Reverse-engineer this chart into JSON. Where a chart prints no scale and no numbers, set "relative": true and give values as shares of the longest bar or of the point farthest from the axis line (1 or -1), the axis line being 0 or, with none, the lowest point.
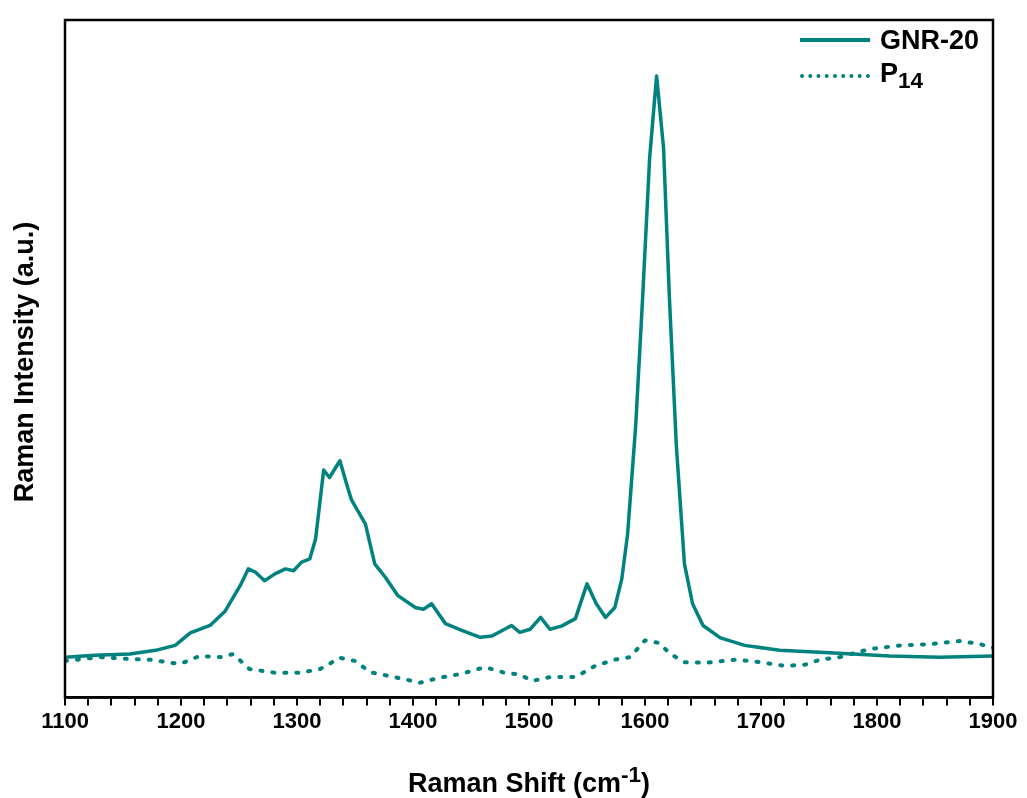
{
  "chart_data": {
    "type": "line",
    "relative": true,
    "xlabel": "Raman Shift (cm$^{-1}$)",
    "ylabel": "Raman Intensity (a.u.)",
    "legend": "top right",
    "marker": "none",
    "grid": false,
    "xlim": [
      1100,
      1900
    ],
    "xticks": [
      1100,
      {
        "value": 1120,
        "label": null
      },
      {
        "value": 1140,
        "label": null
      },
      {
        "value": 1160,
        "label": null
      },
      {
        "value": 1180,
        "label": null
      },
      1200,
      {
        "value": 1220,
        "label": null
      },
      {
        "value": 1240,
        "label": null
      },
      {
        "value": 1260,
        "label": null
      },
      {
        "value": 1280,
        "label": null
      },
      1300,
      {
        "value": 1320,
        "label": null
      },
      {
        "value": 1340,
        "label": null
      },
      {
        "value": 1360,
        "label": null
      },
      {
        "value": 1380,
        "label": null
      },
      1400,
      {
        "value": 1420,
        "label": null
      },
      {
        "value": 1440,
        "label": null
      },
      {
        "value": 1460,
        "label": null
      },
      {
        "value": 1480,
        "label": null
      },
      1500,
      {
        "value": 1520,
        "label": null
      },
      {
        "value": 1540,
        "label": null
      },
      {
        "value": 1560,
        "label": null
      },
      {
        "value": 1580,
        "label": null
      },
      1600,
      {
        "value": 1620,
        "label": null
      },
      {
        "value": 1640,
        "label": null
      },
      {
        "value": 1660,
        "label": null
      },
      {
        "value": 1680,
        "label": null
      },
      1700,
      {
        "value": 1720,
        "label": null
      },
      {
        "value": 1740,
        "label": null
      },
      {
        "value": 1760,
        "label": null
      },
      {
        "value": 1780,
        "label": null
      },
      1800,
      {
        "value": 1820,
        "label": null
      },
      {
        "value": 1840,
        "label": null
      },
      {
        "value": 1860,
        "label": null
      },
      {
        "value": 1880,
        "label": null
      },
      1900
    ],
    "series": [
      {
        "name": "GNR-20",
        "color": "#00827f",
        "line_style": "solid",
        "x": [
          1100,
          1126,
          1156,
          1178,
          1195,
          1208,
          1225,
          1238,
          1251,
          1258,
          1264,
          1272,
          1281,
          1290,
          1297,
          1304,
          1311,
          1316,
          1323,
          1328,
          1337,
          1343,
          1347,
          1359,
          1367,
          1376,
          1387,
          1402,
          1409,
          1416,
          1428,
          1442,
          1458,
          1468,
          1479,
          1485,
          1492,
          1501,
          1510,
          1518,
          1528,
          1540,
          1550,
          1558,
          1566,
          1574,
          1580,
          1585,
          1592,
          1598,
          1604,
          1610,
          1616,
          1621,
          1627,
          1634,
          1641,
          1650,
          1665,
          1686,
          1716,
          1759,
          1811,
          1854,
          1900
        ],
        "values": [
          0.065,
          0.068,
          0.07,
          0.076,
          0.084,
          0.104,
          0.116,
          0.139,
          0.18,
          0.207,
          0.202,
          0.188,
          0.199,
          0.207,
          0.204,
          0.218,
          0.223,
          0.255,
          0.366,
          0.354,
          0.381,
          0.342,
          0.318,
          0.279,
          0.215,
          0.194,
          0.164,
          0.145,
          0.142,
          0.151,
          0.119,
          0.108,
          0.097,
          0.099,
          0.11,
          0.116,
          0.105,
          0.11,
          0.129,
          0.11,
          0.115,
          0.127,
          0.183,
          0.151,
          0.129,
          0.145,
          0.191,
          0.263,
          0.438,
          0.645,
          0.868,
          1.0,
          0.884,
          0.645,
          0.406,
          0.215,
          0.151,
          0.116,
          0.096,
          0.084,
          0.076,
          0.072,
          0.067,
          0.065,
          0.067
        ]
      },
      {
        "name": "P$_{14}$",
        "color": "#00827f",
        "line_style": "dotted",
        "x": [
          1100,
          1130,
          1156,
          1173,
          1199,
          1216,
          1234,
          1245,
          1259,
          1281,
          1303,
          1320,
          1337,
          1350,
          1363,
          1384,
          1406,
          1423,
          1441,
          1462,
          1479,
          1492,
          1503,
          1518,
          1540,
          1557,
          1574,
          1587,
          1600,
          1612,
          1622,
          1634,
          1652,
          1678,
          1699,
          1721,
          1738,
          1751,
          1768,
          1781,
          1794,
          1820,
          1846,
          1872,
          1889,
          1900
        ],
        "values": [
          0.059,
          0.065,
          0.062,
          0.061,
          0.054,
          0.067,
          0.065,
          0.07,
          0.046,
          0.04,
          0.04,
          0.046,
          0.064,
          0.059,
          0.041,
          0.033,
          0.024,
          0.032,
          0.038,
          0.049,
          0.04,
          0.037,
          0.027,
          0.033,
          0.033,
          0.051,
          0.061,
          0.065,
          0.092,
          0.088,
          0.07,
          0.057,
          0.056,
          0.061,
          0.057,
          0.051,
          0.053,
          0.061,
          0.065,
          0.072,
          0.078,
          0.084,
          0.086,
          0.091,
          0.086,
          0.08
        ]
      }
    ]
  }
}
